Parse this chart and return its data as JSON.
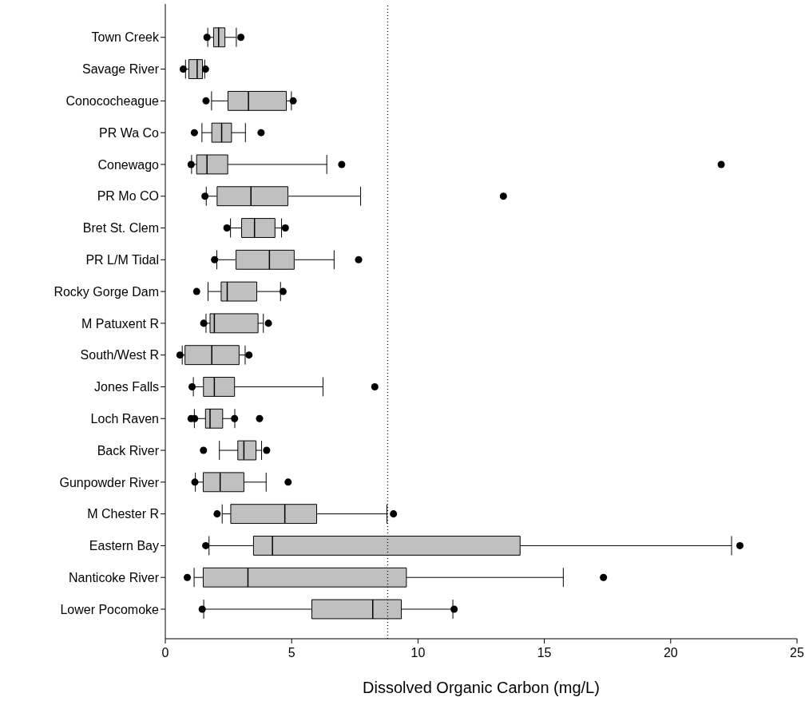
{
  "chart_data": {
    "type": "box",
    "orientation": "horizontal",
    "xlabel": "Dissolved Organic Carbon (mg/L)",
    "categories": [
      "Town Creek",
      "Savage River",
      "Conococheague",
      "PR Wa Co",
      "Conewago",
      "PR Mo CO",
      "Bret St. Clem",
      "PR L/M Tidal",
      "Rocky Gorge Dam",
      "M Patuxent R",
      "South/West R",
      "Jones Falls",
      "Loch Raven",
      "Back River",
      "Gunpowder River",
      "M Chester R",
      "Eastern Bay",
      "Nanticoke River",
      "Lower Pocomoke"
    ],
    "series": [
      {
        "color": "#c0c0c0",
        "boxes": [
          {
            "low": 1.68,
            "q1": 1.91,
            "median": 2.11,
            "q3": 2.36,
            "high": 2.81,
            "outliers": [
              1.65,
              2.99
            ]
          },
          {
            "low": 0.8,
            "q1": 0.93,
            "median": 1.26,
            "q3": 1.47,
            "high": 1.56,
            "outliers": [
              0.71,
              1.59
            ]
          },
          {
            "low": 1.83,
            "q1": 2.48,
            "median": 3.29,
            "q3": 4.79,
            "high": 4.99,
            "outliers": [
              1.61,
              5.06
            ]
          },
          {
            "low": 1.45,
            "q1": 1.84,
            "median": 2.23,
            "q3": 2.62,
            "high": 3.17,
            "outliers": [
              1.15,
              3.79
            ]
          },
          {
            "low": 1.04,
            "q1": 1.24,
            "median": 1.65,
            "q3": 2.47,
            "high": 6.39,
            "outliers": [
              1.02,
              6.98,
              22.0
            ]
          },
          {
            "low": 1.62,
            "q1": 2.05,
            "median": 3.39,
            "q3": 4.85,
            "high": 7.73,
            "outliers": [
              1.57,
              13.38
            ]
          },
          {
            "low": 2.58,
            "q1": 3.02,
            "median": 3.53,
            "q3": 4.34,
            "high": 4.6,
            "outliers": [
              2.44,
              4.75
            ]
          },
          {
            "low": 2.04,
            "q1": 2.8,
            "median": 4.12,
            "q3": 5.1,
            "high": 6.68,
            "outliers": [
              1.95,
              7.65
            ]
          },
          {
            "low": 1.69,
            "q1": 2.21,
            "median": 2.45,
            "q3": 3.62,
            "high": 4.56,
            "outliers": [
              1.24,
              4.66
            ]
          },
          {
            "low": 1.61,
            "q1": 1.77,
            "median": 1.94,
            "q3": 3.67,
            "high": 3.88,
            "outliers": [
              1.52,
              4.08
            ]
          },
          {
            "low": 0.67,
            "q1": 0.78,
            "median": 1.84,
            "q3": 2.92,
            "high": 3.16,
            "outliers": [
              0.58,
              3.31
            ]
          },
          {
            "low": 1.11,
            "q1": 1.51,
            "median": 1.94,
            "q3": 2.74,
            "high": 6.24,
            "outliers": [
              1.06,
              8.29
            ]
          },
          {
            "low": 1.15,
            "q1": 1.59,
            "median": 1.77,
            "q3": 2.27,
            "high": 2.75,
            "outliers": [
              1.02,
              1.16,
              2.74,
              3.73
            ]
          },
          {
            "low": 2.14,
            "q1": 2.87,
            "median": 3.11,
            "q3": 3.59,
            "high": 3.81,
            "outliers": [
              1.51,
              4.01
            ]
          },
          {
            "low": 1.19,
            "q1": 1.5,
            "median": 2.17,
            "q3": 3.11,
            "high": 3.99,
            "outliers": [
              1.17,
              4.86
            ]
          },
          {
            "low": 2.25,
            "q1": 2.59,
            "median": 4.73,
            "q3": 5.99,
            "high": 8.77,
            "outliers": [
              2.05,
              9.03
            ]
          },
          {
            "low": 1.73,
            "q1": 3.49,
            "median": 4.24,
            "q3": 14.04,
            "high": 22.41,
            "outliers": [
              1.6,
              22.74
            ]
          },
          {
            "low": 1.14,
            "q1": 1.5,
            "median": 3.27,
            "q3": 9.54,
            "high": 15.75,
            "outliers": [
              0.87,
              17.34
            ]
          },
          {
            "low": 1.52,
            "q1": 5.8,
            "median": 8.21,
            "q3": 9.34,
            "high": 11.38,
            "outliers": [
              1.46,
              11.43
            ]
          }
        ]
      }
    ],
    "marker": "circle",
    "xlim": [
      0,
      25
    ],
    "xticks": [
      0,
      5,
      10,
      15,
      20,
      25
    ],
    "ref_lines": [
      {
        "axis": "x",
        "value": 8.8,
        "line_style": "dotted"
      }
    ]
  }
}
